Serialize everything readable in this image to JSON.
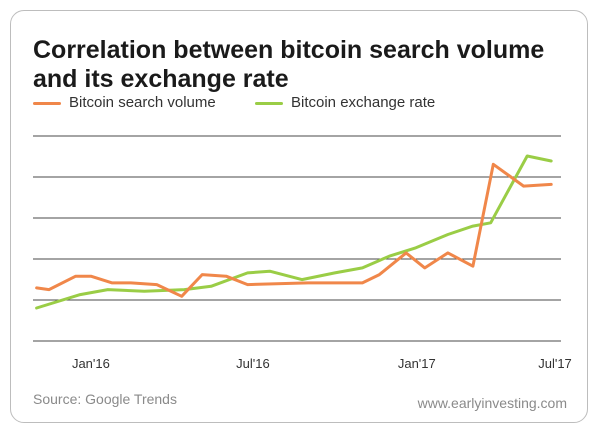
{
  "header": {
    "title": "Correlation between bitcoin search volume and its exchange rate"
  },
  "footer": {
    "source": "Source: Google Trends",
    "website": "www.earlyinvesting.com"
  },
  "colors": {
    "search_volume": "#f0874a",
    "exchange_rate": "#9acd46",
    "grid": "#4a4a4a"
  },
  "chart_data": {
    "type": "line",
    "title": "Correlation between bitcoin search volume and its exchange rate",
    "xlabel": "",
    "ylabel": "",
    "x_tick_labels": [
      "Jan'16",
      "Jul'16",
      "Jan'17",
      "Jul'17"
    ],
    "y_tick_labels": [],
    "legend": {
      "position": "top-left"
    },
    "grid": {
      "horizontal": true,
      "vertical": false
    },
    "series": [
      {
        "name": "Bitcoin search volume",
        "color": "#f0874a",
        "points": [
          [
            "2015-11-01",
            0.21
          ],
          [
            "2015-11-15",
            0.2
          ],
          [
            "2015-12-15",
            0.28
          ],
          [
            "2016-01-01",
            0.28
          ],
          [
            "2016-01-25",
            0.24
          ],
          [
            "2016-02-15",
            0.24
          ],
          [
            "2016-03-15",
            0.23
          ],
          [
            "2016-04-12",
            0.16
          ],
          [
            "2016-05-05",
            0.29
          ],
          [
            "2016-06-01",
            0.28
          ],
          [
            "2016-06-25",
            0.23
          ],
          [
            "2016-09-01",
            0.24
          ],
          [
            "2016-11-01",
            0.24
          ],
          [
            "2016-11-20",
            0.29
          ],
          [
            "2016-12-20",
            0.42
          ],
          [
            "2017-01-10",
            0.33
          ],
          [
            "2017-02-05",
            0.42
          ],
          [
            "2017-03-05",
            0.34
          ],
          [
            "2017-03-28",
            0.95
          ],
          [
            "2017-05-01",
            0.82
          ],
          [
            "2017-06-01",
            0.83
          ]
        ]
      },
      {
        "name": "Bitcoin exchange rate",
        "color": "#9acd46",
        "points": [
          [
            "2015-11-01",
            0.09
          ],
          [
            "2015-12-20",
            0.17
          ],
          [
            "2016-01-20",
            0.2
          ],
          [
            "2016-03-01",
            0.19
          ],
          [
            "2016-04-15",
            0.2
          ],
          [
            "2016-05-15",
            0.22
          ],
          [
            "2016-06-25",
            0.3
          ],
          [
            "2016-07-20",
            0.31
          ],
          [
            "2016-08-25",
            0.26
          ],
          [
            "2016-10-01",
            0.3
          ],
          [
            "2016-11-01",
            0.33
          ],
          [
            "2016-12-01",
            0.4
          ],
          [
            "2016-12-31",
            0.45
          ],
          [
            "2017-02-05",
            0.53
          ],
          [
            "2017-03-05",
            0.58
          ],
          [
            "2017-03-25",
            0.6
          ],
          [
            "2017-05-05",
            1.0
          ],
          [
            "2017-06-01",
            0.97
          ]
        ]
      }
    ]
  }
}
